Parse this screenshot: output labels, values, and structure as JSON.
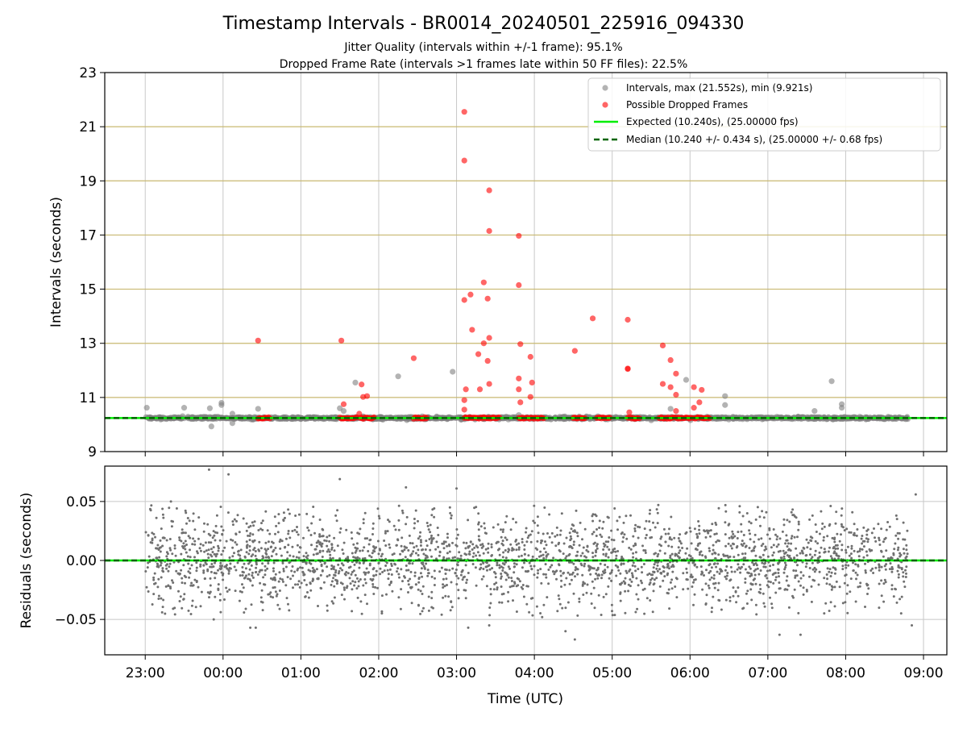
{
  "figure": {
    "title": "Timestamp Intervals - BR0014_20240501_225916_094330",
    "subtitle_1": "Jitter Quality (intervals within +/-1 frame): 95.1%",
    "subtitle_2": "Dropped Frame Rate (intervals >1 frames late within 50 FF files): 22.5%"
  },
  "colors": {
    "intervals": "#808080",
    "dropped": "#ff0000",
    "expected": "#00ee00",
    "median": "#006400",
    "frame_lines": "#c8b870",
    "grid": "#c8c8c8",
    "residuals": "#707070"
  },
  "chart_data": [
    {
      "type": "scatter",
      "panel": "top",
      "ylabel": "Intervals (seconds)",
      "ylim": [
        9,
        23
      ],
      "yticks": [
        "9",
        "11",
        "13",
        "15",
        "17",
        "19",
        "21",
        "23"
      ],
      "ytick_values": [
        9,
        11,
        13,
        15,
        17,
        19,
        21,
        23
      ],
      "xlim_hours": [
        -0.52,
        10.3
      ],
      "grid": "vertical gridlines at hour ticks; horizontal lines at frame multiples",
      "frame_lines_y": [
        11,
        13,
        15,
        17,
        19,
        21
      ],
      "legend_position": "upper right",
      "legend": [
        "Intervals, max (21.552s), min (9.921s)",
        "Possible Dropped Frames",
        "Expected (10.240s), (25.00000 fps)",
        "Median (10.240 +/- 0.434 s), (25.00000 +/- 0.68 fps)"
      ],
      "expected_y": 10.24,
      "median_y": 10.24,
      "baseline_value": 10.24,
      "baseline_x_range_hours": [
        0.0,
        9.8
      ],
      "intervals_outliers": [
        {
          "x": 0.02,
          "y": 10.62
        },
        {
          "x": 0.5,
          "y": 10.62
        },
        {
          "x": 0.83,
          "y": 10.6
        },
        {
          "x": 0.85,
          "y": 9.93
        },
        {
          "x": 0.98,
          "y": 10.8
        },
        {
          "x": 0.98,
          "y": 10.72
        },
        {
          "x": 1.12,
          "y": 10.05
        },
        {
          "x": 1.12,
          "y": 10.4
        },
        {
          "x": 1.45,
          "y": 10.58
        },
        {
          "x": 2.5,
          "y": 10.6
        },
        {
          "x": 2.55,
          "y": 10.5
        },
        {
          "x": 2.7,
          "y": 11.55
        },
        {
          "x": 3.25,
          "y": 11.78
        },
        {
          "x": 3.95,
          "y": 11.95
        },
        {
          "x": 4.8,
          "y": 10.35
        },
        {
          "x": 6.95,
          "y": 11.65
        },
        {
          "x": 6.75,
          "y": 10.58
        },
        {
          "x": 7.45,
          "y": 11.05
        },
        {
          "x": 7.45,
          "y": 10.72
        },
        {
          "x": 8.6,
          "y": 10.5
        },
        {
          "x": 8.82,
          "y": 11.6
        },
        {
          "x": 8.95,
          "y": 10.75
        },
        {
          "x": 8.95,
          "y": 10.62
        }
      ],
      "dropped_frames": [
        {
          "x": 1.45,
          "y": 13.1
        },
        {
          "x": 2.52,
          "y": 13.1
        },
        {
          "x": 2.55,
          "y": 10.75
        },
        {
          "x": 2.78,
          "y": 11.48
        },
        {
          "x": 2.8,
          "y": 11.02
        },
        {
          "x": 2.85,
          "y": 11.05
        },
        {
          "x": 2.75,
          "y": 10.4
        },
        {
          "x": 3.45,
          "y": 12.45
        },
        {
          "x": 4.1,
          "y": 21.55
        },
        {
          "x": 4.1,
          "y": 19.75
        },
        {
          "x": 4.1,
          "y": 14.6
        },
        {
          "x": 4.18,
          "y": 14.8
        },
        {
          "x": 4.2,
          "y": 13.5
        },
        {
          "x": 4.1,
          "y": 10.9
        },
        {
          "x": 4.1,
          "y": 10.55
        },
        {
          "x": 4.12,
          "y": 11.3
        },
        {
          "x": 4.28,
          "y": 12.6
        },
        {
          "x": 4.3,
          "y": 11.3
        },
        {
          "x": 4.35,
          "y": 15.25
        },
        {
          "x": 4.35,
          "y": 13.0
        },
        {
          "x": 4.42,
          "y": 18.65
        },
        {
          "x": 4.42,
          "y": 17.15
        },
        {
          "x": 4.4,
          "y": 14.65
        },
        {
          "x": 4.42,
          "y": 13.2
        },
        {
          "x": 4.4,
          "y": 12.35
        },
        {
          "x": 4.42,
          "y": 11.5
        },
        {
          "x": 4.8,
          "y": 16.97
        },
        {
          "x": 4.8,
          "y": 15.15
        },
        {
          "x": 4.82,
          "y": 12.97
        },
        {
          "x": 4.8,
          "y": 11.7
        },
        {
          "x": 4.8,
          "y": 11.3
        },
        {
          "x": 4.82,
          "y": 10.82
        },
        {
          "x": 4.95,
          "y": 12.5
        },
        {
          "x": 4.97,
          "y": 11.55
        },
        {
          "x": 4.95,
          "y": 11.02
        },
        {
          "x": 5.52,
          "y": 12.72
        },
        {
          "x": 5.75,
          "y": 13.92
        },
        {
          "x": 6.2,
          "y": 13.87
        },
        {
          "x": 6.2,
          "y": 12.07
        },
        {
          "x": 6.2,
          "y": 12.05
        },
        {
          "x": 6.22,
          "y": 10.45
        },
        {
          "x": 6.65,
          "y": 12.92
        },
        {
          "x": 6.75,
          "y": 12.38
        },
        {
          "x": 6.65,
          "y": 11.5
        },
        {
          "x": 6.75,
          "y": 11.38
        },
        {
          "x": 6.82,
          "y": 11.88
        },
        {
          "x": 6.82,
          "y": 11.1
        },
        {
          "x": 6.82,
          "y": 10.5
        },
        {
          "x": 7.05,
          "y": 11.38
        },
        {
          "x": 7.15,
          "y": 11.28
        },
        {
          "x": 7.05,
          "y": 10.62
        },
        {
          "x": 7.12,
          "y": 10.82
        }
      ],
      "dropped_clusters_at_baseline_hours": [
        [
          1.45,
          1.6
        ],
        [
          2.5,
          2.72
        ],
        [
          2.76,
          2.94
        ],
        [
          3.45,
          3.62
        ],
        [
          4.1,
          4.55
        ],
        [
          4.8,
          5.12
        ],
        [
          5.5,
          5.65
        ],
        [
          5.8,
          5.97
        ],
        [
          6.2,
          6.35
        ],
        [
          6.6,
          7.02
        ],
        [
          7.05,
          7.25
        ]
      ]
    },
    {
      "type": "scatter",
      "panel": "bottom",
      "ylabel": "Residuals (seconds)",
      "xlabel": "Time (UTC)",
      "ylim": [
        -0.08,
        0.08
      ],
      "yticks": [
        "−0.05",
        "0.00",
        "0.05"
      ],
      "ytick_values": [
        -0.05,
        0.0,
        0.05
      ],
      "xlim_hours": [
        -0.52,
        10.3
      ],
      "xticks": [
        "23:00",
        "00:00",
        "01:00",
        "02:00",
        "03:00",
        "04:00",
        "05:00",
        "06:00",
        "07:00",
        "08:00",
        "09:00"
      ],
      "xtick_values_hours": [
        0,
        1,
        2,
        3,
        4,
        5,
        6,
        7,
        8,
        9,
        10
      ],
      "zero_line_y": 0.0,
      "residual_spread_sd": 0.02,
      "residual_x_range_hours": [
        0.0,
        9.8
      ],
      "residual_outliers": [
        {
          "x": 0.82,
          "y": 0.077
        },
        {
          "x": 1.07,
          "y": 0.073
        },
        {
          "x": 1.35,
          "y": -0.057
        },
        {
          "x": 1.42,
          "y": -0.057
        },
        {
          "x": 0.33,
          "y": 0.05
        },
        {
          "x": 2.5,
          "y": 0.069
        },
        {
          "x": 3.35,
          "y": 0.062
        },
        {
          "x": 4.0,
          "y": 0.061
        },
        {
          "x": 4.15,
          "y": -0.057
        },
        {
          "x": 4.42,
          "y": -0.055
        },
        {
          "x": 5.1,
          "y": -0.048
        },
        {
          "x": 5.52,
          "y": -0.067
        },
        {
          "x": 5.4,
          "y": -0.06
        },
        {
          "x": 8.15,
          "y": -0.063
        },
        {
          "x": 8.42,
          "y": -0.063
        },
        {
          "x": 9.9,
          "y": 0.056
        },
        {
          "x": 9.85,
          "y": -0.055
        },
        {
          "x": 0.88,
          "y": -0.05
        }
      ]
    }
  ]
}
